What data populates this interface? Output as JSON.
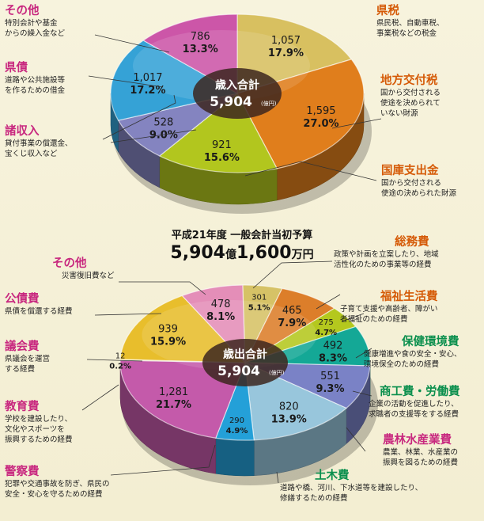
{
  "chart_data": [
    {
      "type": "pie",
      "center_label": "歳入合計",
      "center_total": "5,904",
      "center_unit": "(億円)",
      "slices": [
        {
          "title": "県税",
          "desc": [
            "県民税、自動車税、",
            "事業税などの税金"
          ],
          "value": 1057,
          "value_text": "1,057",
          "pct": "17.9%",
          "color": "#d8c060"
        },
        {
          "title": "地方交付税",
          "desc": [
            "国から交付される",
            "使途を決められて",
            "いない財源"
          ],
          "value": 1595,
          "value_text": "1,595",
          "pct": "27.0%",
          "color": "#e07e1c"
        },
        {
          "title": "国庫支出金",
          "desc": [
            "国から交付される",
            "使途の決められた財源"
          ],
          "value": 921,
          "value_text": "921",
          "pct": "15.6%",
          "color": "#b2c61e"
        },
        {
          "title": "諸収入",
          "desc": [
            "貸付事業の償還金、",
            "宝くじ収入など"
          ],
          "value": 528,
          "value_text": "528",
          "pct": "9.0%",
          "color": "#8484c0"
        },
        {
          "title": "県債",
          "desc": [
            "道路や公共施設等",
            "を作るための借金"
          ],
          "value": 1017,
          "value_text": "1,017",
          "pct": "17.2%",
          "color": "#35a2d6"
        },
        {
          "title": "その他",
          "desc": [
            "特別会計や基金",
            "からの繰入金など"
          ],
          "value": 786,
          "value_text": "786",
          "pct": "13.3%",
          "color": "#cc56a8"
        }
      ]
    },
    {
      "type": "pie",
      "center_label": "歳出合計",
      "center_total": "5,904",
      "center_unit": "(億円)",
      "slices": [
        {
          "title": "総務費",
          "desc": [
            "政策や計画を立案したり、地域",
            "活性化のための事業等の経費"
          ],
          "value": 301,
          "value_text": "301",
          "pct": "5.1%",
          "color": "#d6c266"
        },
        {
          "title": "福祉生活費",
          "desc": [
            "子育て支援や高齢者、障がい",
            "者福祉のための経費"
          ],
          "value": 465,
          "value_text": "465",
          "pct": "7.9%",
          "color": "#dc7e2a"
        },
        {
          "title": "保健環境費",
          "desc": [
            "健康増進や食の安全・安心、",
            "環境保全のための経費"
          ],
          "value": 275,
          "value_text": "275",
          "pct": "4.7%",
          "color": "#b4c81e"
        },
        {
          "title": "商工費・労働費",
          "desc": [
            "企業の活動を促進したり、",
            "求職者の支援等をする経費"
          ],
          "value": 492,
          "value_text": "492",
          "pct": "8.3%",
          "color": "#14a896"
        },
        {
          "title": "農林水産業費",
          "desc": [
            "農業、林業、水産業の",
            "振興を図るための経費"
          ],
          "value": 551,
          "value_text": "551",
          "pct": "9.3%",
          "color": "#7a82c6"
        },
        {
          "title": "土木費",
          "desc": [
            "道路や橋、河川、下水道等を建設したり、",
            "修繕するための経費"
          ],
          "value": 820,
          "value_text": "820",
          "pct": "13.9%",
          "color": "#98c6dc"
        },
        {
          "title": "警察費",
          "desc": [
            "犯罪や交通事故を防ぎ、県民の",
            "安全・安心を守るための経費"
          ],
          "value": 290,
          "value_text": "290",
          "pct": "4.9%",
          "color": "#24a0d8"
        },
        {
          "title": "教育費",
          "desc": [
            "学校を建設したり、",
            "文化やスポーツを",
            "振興するための経費"
          ],
          "value": 1281,
          "value_text": "1,281",
          "pct": "21.7%",
          "color": "#c45aaa"
        },
        {
          "title": "議会費",
          "desc": [
            "県議会を運営",
            "する経費"
          ],
          "value": 12,
          "value_text": "12",
          "pct": "0.2%",
          "color": "#d0c27a"
        },
        {
          "title": "公債費",
          "desc": [
            "県債を償還する経費"
          ],
          "value": 939,
          "value_text": "939",
          "pct": "15.9%",
          "color": "#e8be2c"
        },
        {
          "title": "その他",
          "desc": [
            "災害復旧費など"
          ],
          "value": 478,
          "value_text": "478",
          "pct": "8.1%",
          "color": "#e48eb8"
        }
      ]
    }
  ],
  "middle": {
    "subtitle": "平成21年度 一般会計当初予算",
    "total_oku": "5,904",
    "oku_unit": "億",
    "total_man": "1,600",
    "man_unit": "万円"
  }
}
